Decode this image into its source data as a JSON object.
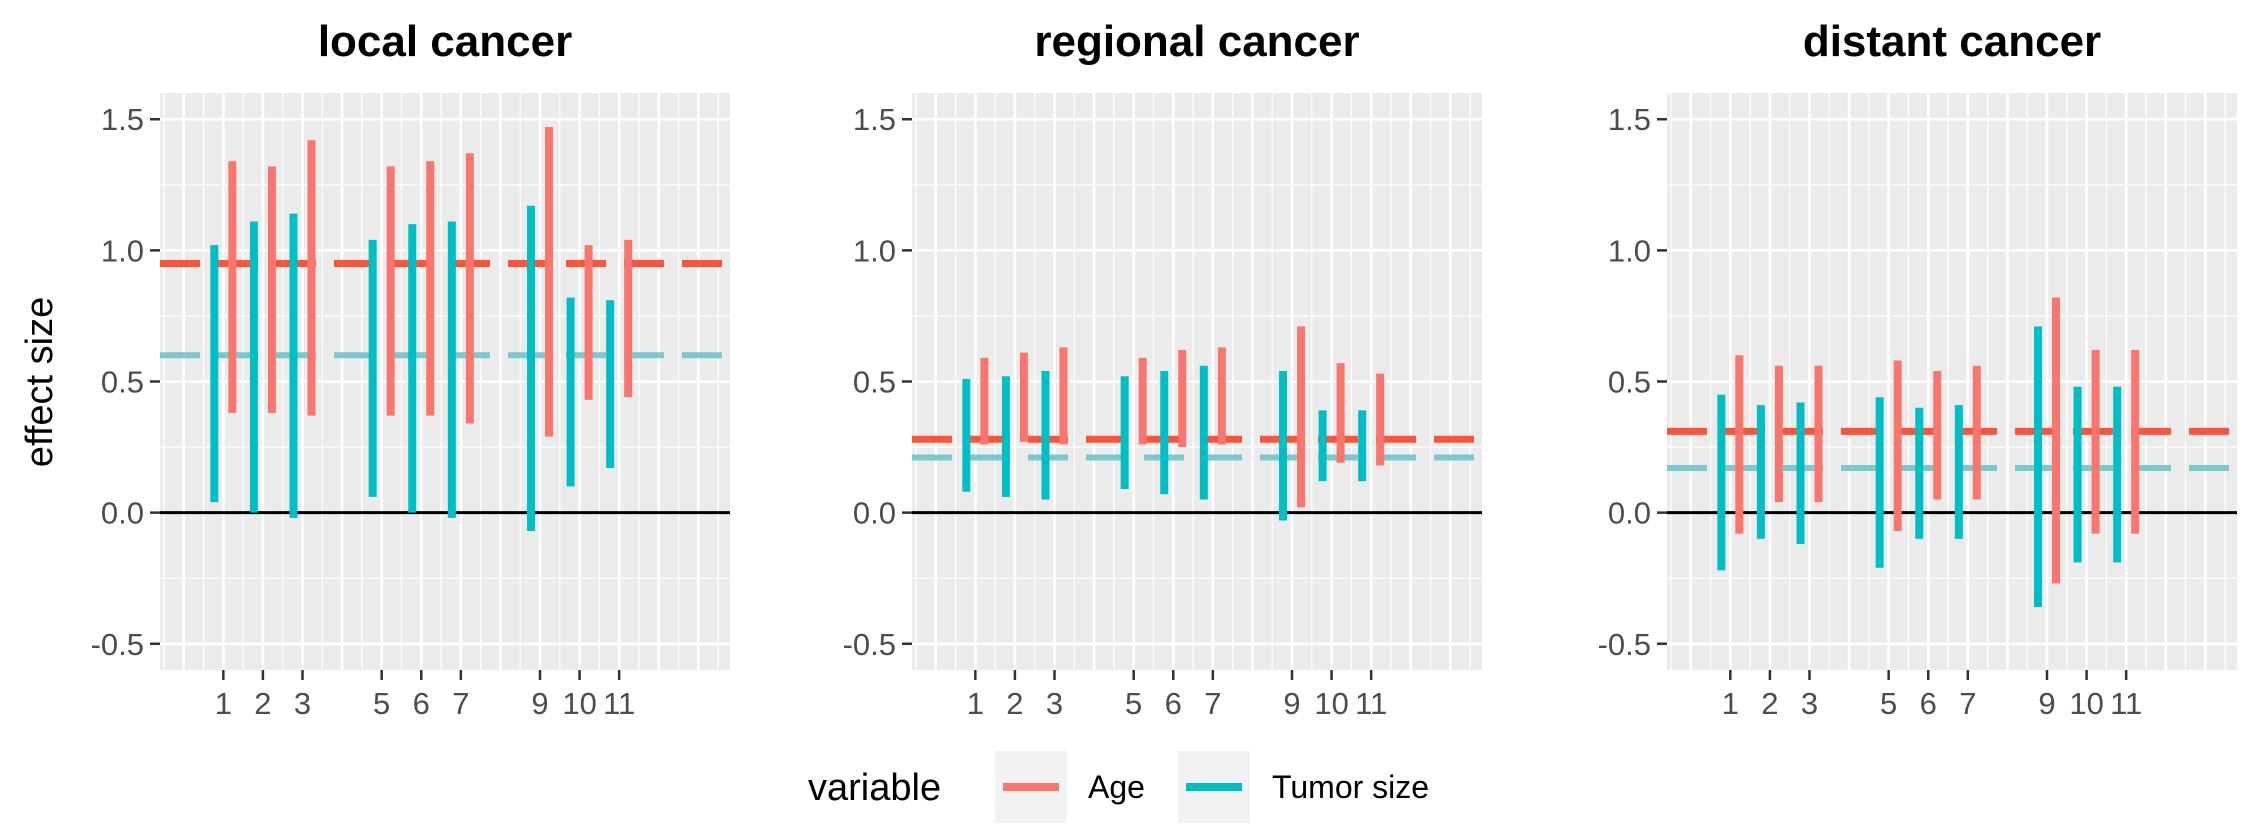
{
  "chart_data": {
    "type": "errorbar",
    "ylabel": "effect size",
    "ylim": [
      -0.6,
      1.6
    ],
    "yticks": [
      "-0.5",
      "0.0",
      "0.5",
      "1.0",
      "1.5"
    ],
    "ytick_values": [
      -0.5,
      0,
      0.5,
      1.0,
      1.5
    ],
    "xlim": [
      -0.6,
      13.8
    ],
    "xticks": [
      "1",
      "2",
      "3",
      "5",
      "6",
      "7",
      "9",
      "10",
      "11"
    ],
    "xtick_values": [
      1,
      2,
      3,
      5,
      6,
      7,
      9,
      10,
      11
    ],
    "reference_line": 0,
    "grid": true,
    "legend": {
      "title": "variable",
      "position": "bottom",
      "entries": [
        {
          "label": "Age",
          "color": "#F8766D"
        },
        {
          "label": "Tumor size",
          "color": "#00BFC4"
        }
      ]
    },
    "panels": [
      {
        "title": "local cancer",
        "pooled": {
          "Age": 0.95,
          "Tumor size": 0.6
        },
        "series": [
          {
            "name": "Age",
            "intervals": [
              [
                1,
                0.38,
                1.34
              ],
              [
                2,
                0.38,
                1.32
              ],
              [
                3,
                0.37,
                1.42
              ],
              [
                5,
                0.37,
                1.32
              ],
              [
                6,
                0.37,
                1.34
              ],
              [
                7,
                0.34,
                1.37
              ],
              [
                9,
                0.29,
                1.47
              ],
              [
                10,
                0.43,
                1.02
              ],
              [
                11,
                0.44,
                1.04
              ]
            ]
          },
          {
            "name": "Tumor size",
            "intervals": [
              [
                1,
                0.04,
                1.02
              ],
              [
                2,
                0.0,
                1.11
              ],
              [
                3,
                -0.02,
                1.14
              ],
              [
                5,
                0.06,
                1.04
              ],
              [
                6,
                0.0,
                1.1
              ],
              [
                7,
                -0.02,
                1.11
              ],
              [
                9,
                -0.07,
                1.17
              ],
              [
                10,
                0.1,
                0.82
              ],
              [
                11,
                0.17,
                0.81
              ]
            ]
          }
        ]
      },
      {
        "title": "regional cancer",
        "pooled": {
          "Age": 0.28,
          "Tumor size": 0.21
        },
        "series": [
          {
            "name": "Age",
            "intervals": [
              [
                1,
                0.26,
                0.59
              ],
              [
                2,
                0.27,
                0.61
              ],
              [
                3,
                0.26,
                0.63
              ],
              [
                5,
                0.26,
                0.59
              ],
              [
                6,
                0.25,
                0.62
              ],
              [
                7,
                0.26,
                0.63
              ],
              [
                9,
                0.02,
                0.71
              ],
              [
                10,
                0.19,
                0.57
              ],
              [
                11,
                0.18,
                0.53
              ]
            ]
          },
          {
            "name": "Tumor size",
            "intervals": [
              [
                1,
                0.08,
                0.51
              ],
              [
                2,
                0.06,
                0.52
              ],
              [
                3,
                0.05,
                0.54
              ],
              [
                5,
                0.09,
                0.52
              ],
              [
                6,
                0.07,
                0.54
              ],
              [
                7,
                0.05,
                0.56
              ],
              [
                9,
                -0.03,
                0.54
              ],
              [
                10,
                0.12,
                0.39
              ],
              [
                11,
                0.12,
                0.39
              ]
            ]
          }
        ]
      },
      {
        "title": "distant cancer",
        "pooled": {
          "Age": 0.31,
          "Tumor size": 0.17
        },
        "series": [
          {
            "name": "Age",
            "intervals": [
              [
                1,
                -0.08,
                0.6
              ],
              [
                2,
                0.04,
                0.56
              ],
              [
                3,
                0.04,
                0.56
              ],
              [
                5,
                -0.07,
                0.58
              ],
              [
                6,
                0.05,
                0.54
              ],
              [
                7,
                0.05,
                0.56
              ],
              [
                9,
                -0.27,
                0.82
              ],
              [
                10,
                -0.08,
                0.62
              ],
              [
                11,
                -0.08,
                0.62
              ]
            ]
          },
          {
            "name": "Tumor size",
            "intervals": [
              [
                1,
                -0.22,
                0.45
              ],
              [
                2,
                -0.1,
                0.41
              ],
              [
                3,
                -0.12,
                0.42
              ],
              [
                5,
                -0.21,
                0.44
              ],
              [
                6,
                -0.1,
                0.4
              ],
              [
                7,
                -0.1,
                0.41
              ],
              [
                9,
                -0.36,
                0.71
              ],
              [
                10,
                -0.19,
                0.48
              ],
              [
                11,
                -0.19,
                0.48
              ]
            ]
          }
        ]
      }
    ],
    "colors": {
      "Age": "#F8766D",
      "Tumor size": "#00BFC4",
      "pooled_Age": "#F8553A",
      "pooled_Tumor size": "#7BC8CF",
      "panel_background": "#EBEBEB",
      "grid": "#FFFFFF"
    }
  }
}
